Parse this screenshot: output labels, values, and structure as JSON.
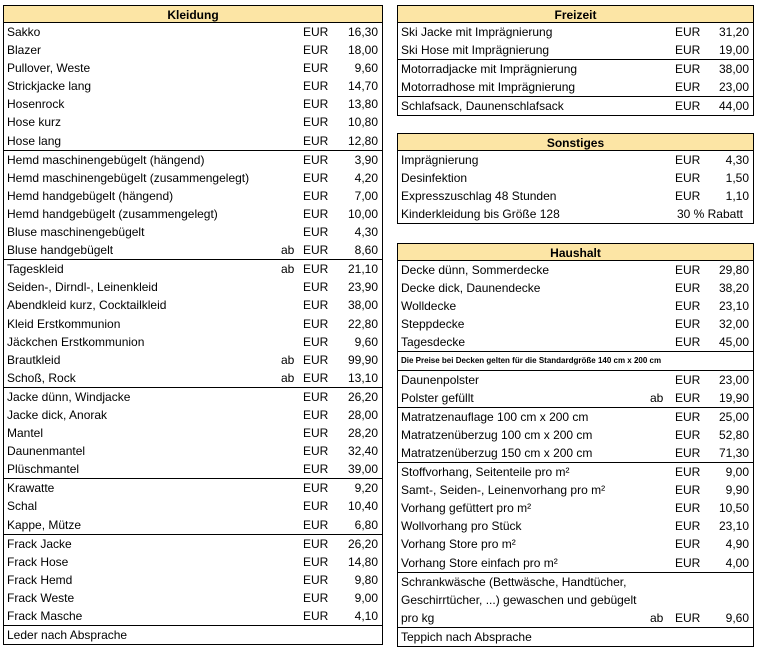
{
  "sections": [
    {
      "title": "Kleidung",
      "groups": [
        {
          "rows": [
            {
              "item": "Sakko",
              "cur": "EUR",
              "price": "16,30"
            },
            {
              "item": "Blazer",
              "cur": "EUR",
              "price": "18,00"
            },
            {
              "item": "Pullover, Weste",
              "cur": "EUR",
              "price": "9,60"
            },
            {
              "item": "Strickjacke lang",
              "cur": "EUR",
              "price": "14,70"
            },
            {
              "item": "Hosenrock",
              "cur": "EUR",
              "price": "13,80"
            },
            {
              "item": "Hose kurz",
              "cur": "EUR",
              "price": "10,80"
            },
            {
              "item": "Hose lang",
              "cur": "EUR",
              "price": "12,80"
            }
          ]
        },
        {
          "rows": [
            {
              "item": "Hemd maschinengebügelt (hängend)",
              "cur": "EUR",
              "price": "3,90"
            },
            {
              "item": "Hemd maschinengebügelt (zusammengelegt)",
              "cur": "EUR",
              "price": "4,20"
            },
            {
              "item": "Hemd handgebügelt (hängend)",
              "cur": "EUR",
              "price": "7,00"
            },
            {
              "item": "Hemd handgebügelt (zusammengelegt)",
              "cur": "EUR",
              "price": "10,00"
            },
            {
              "item": "Bluse maschinengebügelt",
              "cur": "EUR",
              "price": "4,30"
            },
            {
              "item": "Bluse handgebügelt",
              "prefix": "ab",
              "cur": "EUR",
              "price": "8,60"
            }
          ]
        },
        {
          "rows": [
            {
              "item": "Tageskleid",
              "prefix": "ab",
              "cur": "EUR",
              "price": "21,10"
            },
            {
              "item": "Seiden-, Dirndl-, Leinenkleid",
              "cur": "EUR",
              "price": "23,90"
            },
            {
              "item": "Abendkleid kurz, Cocktailkleid",
              "cur": "EUR",
              "price": "38,00"
            },
            {
              "item": "Kleid Erstkommunion",
              "cur": "EUR",
              "price": "22,80"
            },
            {
              "item": "Jäckchen Erstkommunion",
              "cur": "EUR",
              "price": "9,60"
            },
            {
              "item": "Brautkleid",
              "prefix": "ab",
              "cur": "EUR",
              "price": "99,90"
            },
            {
              "item": "Schoß, Rock",
              "prefix": "ab",
              "cur": "EUR",
              "price": "13,10"
            }
          ]
        },
        {
          "rows": [
            {
              "item": "Jacke dünn, Windjacke",
              "cur": "EUR",
              "price": "26,20"
            },
            {
              "item": "Jacke dick, Anorak",
              "cur": "EUR",
              "price": "28,00"
            },
            {
              "item": "Mantel",
              "cur": "EUR",
              "price": "28,20"
            },
            {
              "item": "Daunenmantel",
              "cur": "EUR",
              "price": "32,40"
            },
            {
              "item": "Plüschmantel",
              "cur": "EUR",
              "price": "39,00"
            }
          ]
        },
        {
          "rows": [
            {
              "item": "Krawatte",
              "cur": "EUR",
              "price": "9,20"
            },
            {
              "item": "Schal",
              "cur": "EUR",
              "price": "10,40"
            },
            {
              "item": "Kappe, Mütze",
              "cur": "EUR",
              "price": "6,80"
            }
          ]
        },
        {
          "rows": [
            {
              "item": "Frack Jacke",
              "cur": "EUR",
              "price": "26,20"
            },
            {
              "item": "Frack Hose",
              "cur": "EUR",
              "price": "14,80"
            },
            {
              "item": "Frack Hemd",
              "cur": "EUR",
              "price": "9,80"
            },
            {
              "item": "Frack Weste",
              "cur": "EUR",
              "price": "9,00"
            },
            {
              "item": "Frack Masche",
              "cur": "EUR",
              "price": "4,10"
            }
          ]
        },
        {
          "rows": [
            {
              "item": "Leder nach Absprache"
            }
          ]
        }
      ]
    },
    {
      "title": "Freizeit",
      "groups": [
        {
          "rows": [
            {
              "item": "Ski Jacke mit Imprägnierung",
              "cur": "EUR",
              "price": "31,20"
            },
            {
              "item": "Ski Hose mit Imprägnierung",
              "cur": "EUR",
              "price": "19,00"
            }
          ]
        },
        {
          "rows": [
            {
              "item": "Motorradjacke mit Imprägnierung",
              "cur": "EUR",
              "price": "38,00"
            },
            {
              "item": "Motorradhose mit Imprägnierung",
              "cur": "EUR",
              "price": "23,00"
            }
          ]
        },
        {
          "rows": [
            {
              "item": "Schlafsack, Daunenschlafsack",
              "cur": "EUR",
              "price": "44,00"
            }
          ]
        }
      ]
    },
    {
      "title": "Sonstiges",
      "groups": [
        {
          "rows": [
            {
              "item": "Imprägnierung",
              "cur": "EUR",
              "price": "4,30"
            },
            {
              "item": "Desinfektion",
              "cur": "EUR",
              "price": "1,50"
            },
            {
              "item": "Expresszuschlag 48 Stunden",
              "cur": "EUR",
              "price": "1,10"
            },
            {
              "item": "Kinderkleidung bis Größe 128",
              "remark": "30 % Rabatt"
            }
          ]
        }
      ]
    },
    {
      "title": "Haushalt",
      "groups": [
        {
          "rows": [
            {
              "item": "Decke dünn, Sommerdecke",
              "cur": "EUR",
              "price": "29,80"
            },
            {
              "item": "Decke dick, Daunendecke",
              "cur": "EUR",
              "price": "38,20"
            },
            {
              "item": "Wolldecke",
              "cur": "EUR",
              "price": "23,10"
            },
            {
              "item": "Steppdecke",
              "cur": "EUR",
              "price": "32,00"
            },
            {
              "item": "Tagesdecke",
              "cur": "EUR",
              "price": "45,00"
            }
          ]
        },
        {
          "note": "Die Preise bei Decken gelten für die Standardgröße 140 cm x 200 cm"
        },
        {
          "rows": [
            {
              "item": "Daunenpolster",
              "cur": "EUR",
              "price": "23,00"
            },
            {
              "item": "Polster gefüllt",
              "prefix": "ab",
              "cur": "EUR",
              "price": "19,90"
            }
          ]
        },
        {
          "rows": [
            {
              "item": "Matratzenauflage 100 cm x 200 cm",
              "cur": "EUR",
              "price": "25,00"
            },
            {
              "item": "Matratzenüberzug 100 cm x 200 cm",
              "cur": "EUR",
              "price": "52,80"
            },
            {
              "item": "Matratzenüberzug 150 cm x 200 cm",
              "cur": "EUR",
              "price": "71,30"
            }
          ]
        },
        {
          "rows": [
            {
              "item": "Stoffvorhang, Seitenteile pro m²",
              "cur": "EUR",
              "price": "9,00"
            },
            {
              "item": "Samt-, Seiden-, Leinenvorhang pro m²",
              "cur": "EUR",
              "price": "9,90"
            },
            {
              "item": "Vorhang gefüttert pro m²",
              "cur": "EUR",
              "price": "10,50"
            },
            {
              "item": "Wollvorhang pro Stück",
              "cur": "EUR",
              "price": "23,10"
            },
            {
              "item": "Vorhang Store pro m²",
              "cur": "EUR",
              "price": "4,90"
            },
            {
              "item": "Vorhang Store einfach pro m²",
              "cur": "EUR",
              "price": "4,00"
            }
          ]
        },
        {
          "rows": [
            {
              "lines": [
                "Schrankwäsche (Bettwäsche, Handtücher,",
                "Geschirrtücher, ...) gewaschen und gebügelt",
                "pro kg"
              ],
              "prefix": "ab",
              "cur": "EUR",
              "price": "9,60"
            }
          ]
        },
        {
          "rows": [
            {
              "item": "Teppich nach Absprache"
            }
          ]
        }
      ]
    }
  ]
}
